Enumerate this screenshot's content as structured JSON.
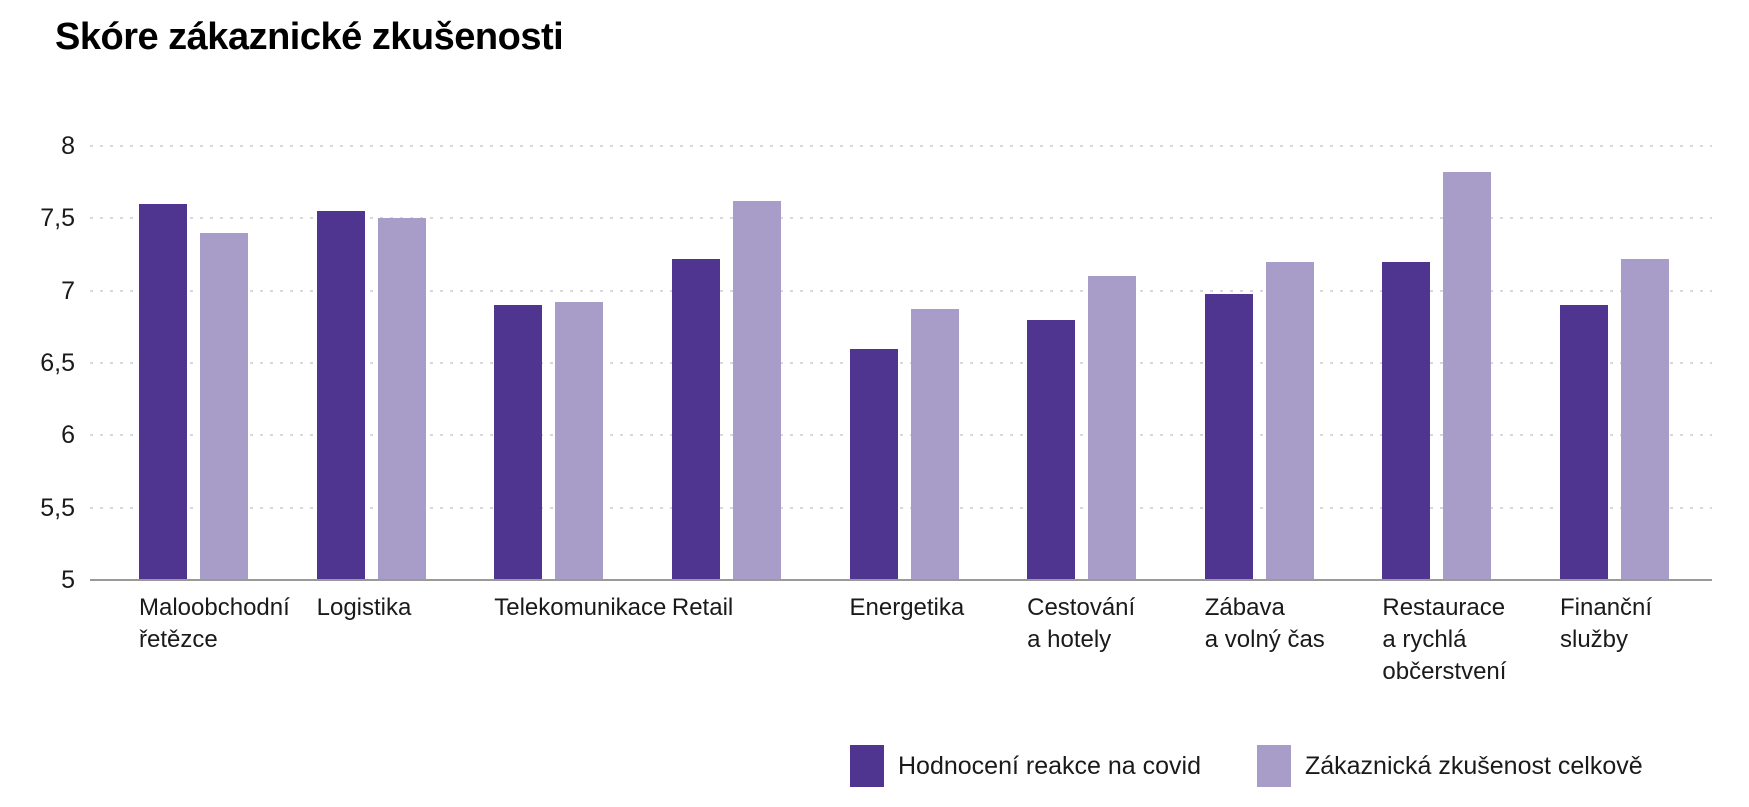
{
  "chart_data": {
    "type": "bar",
    "title": "Skóre zákaznické zkušenosti",
    "categories": [
      "Maloobchodní řetězce",
      "Logistika",
      "Telekomunikace",
      "Retail",
      "Energetika",
      "Cestování a hotely",
      "Zábava a volný čas",
      "Restaurace a rychlá občerstvení",
      "Finanční služby"
    ],
    "category_lines": [
      [
        "Maloobchodní",
        "řetězce"
      ],
      [
        "Logistika"
      ],
      [
        "Telekomunikace"
      ],
      [
        "Retail"
      ],
      [
        "Energetika"
      ],
      [
        "Cestování",
        "a hotely"
      ],
      [
        "Zábava",
        "a volný čas"
      ],
      [
        "Restaurace",
        "a rychlá",
        "občerstvení"
      ],
      [
        "Finanční",
        "služby"
      ]
    ],
    "series": [
      {
        "name": "Hodnocení reakce na covid",
        "color": "#4f3590",
        "values": [
          7.6,
          7.55,
          6.9,
          7.22,
          6.6,
          6.8,
          6.98,
          7.2,
          6.9
        ]
      },
      {
        "name": "Zákaznická zkušenost celkově",
        "color": "#a89cc9",
        "values": [
          7.4,
          7.5,
          6.92,
          7.62,
          6.87,
          7.1,
          7.2,
          7.82,
          7.22
        ]
      }
    ],
    "ylim": [
      5,
      8
    ],
    "yticks": [
      {
        "v": 8,
        "label": "8"
      },
      {
        "v": 7.5,
        "label": "7,5"
      },
      {
        "v": 7,
        "label": "7"
      },
      {
        "v": 6.5,
        "label": "6,5"
      },
      {
        "v": 6,
        "label": "6"
      },
      {
        "v": 5.5,
        "label": "5,5"
      },
      {
        "v": 5,
        "label": "5"
      }
    ],
    "decimal_separator": ",",
    "grid": "dotted-horizontal",
    "legend_position": "bottom"
  },
  "colors": {
    "bar_covid": "#4f3590",
    "bar_overall": "#a89cc9",
    "axis_line": "#9a9a9a",
    "gridline": "#d7d7dd",
    "text": "#1a1a1a"
  }
}
